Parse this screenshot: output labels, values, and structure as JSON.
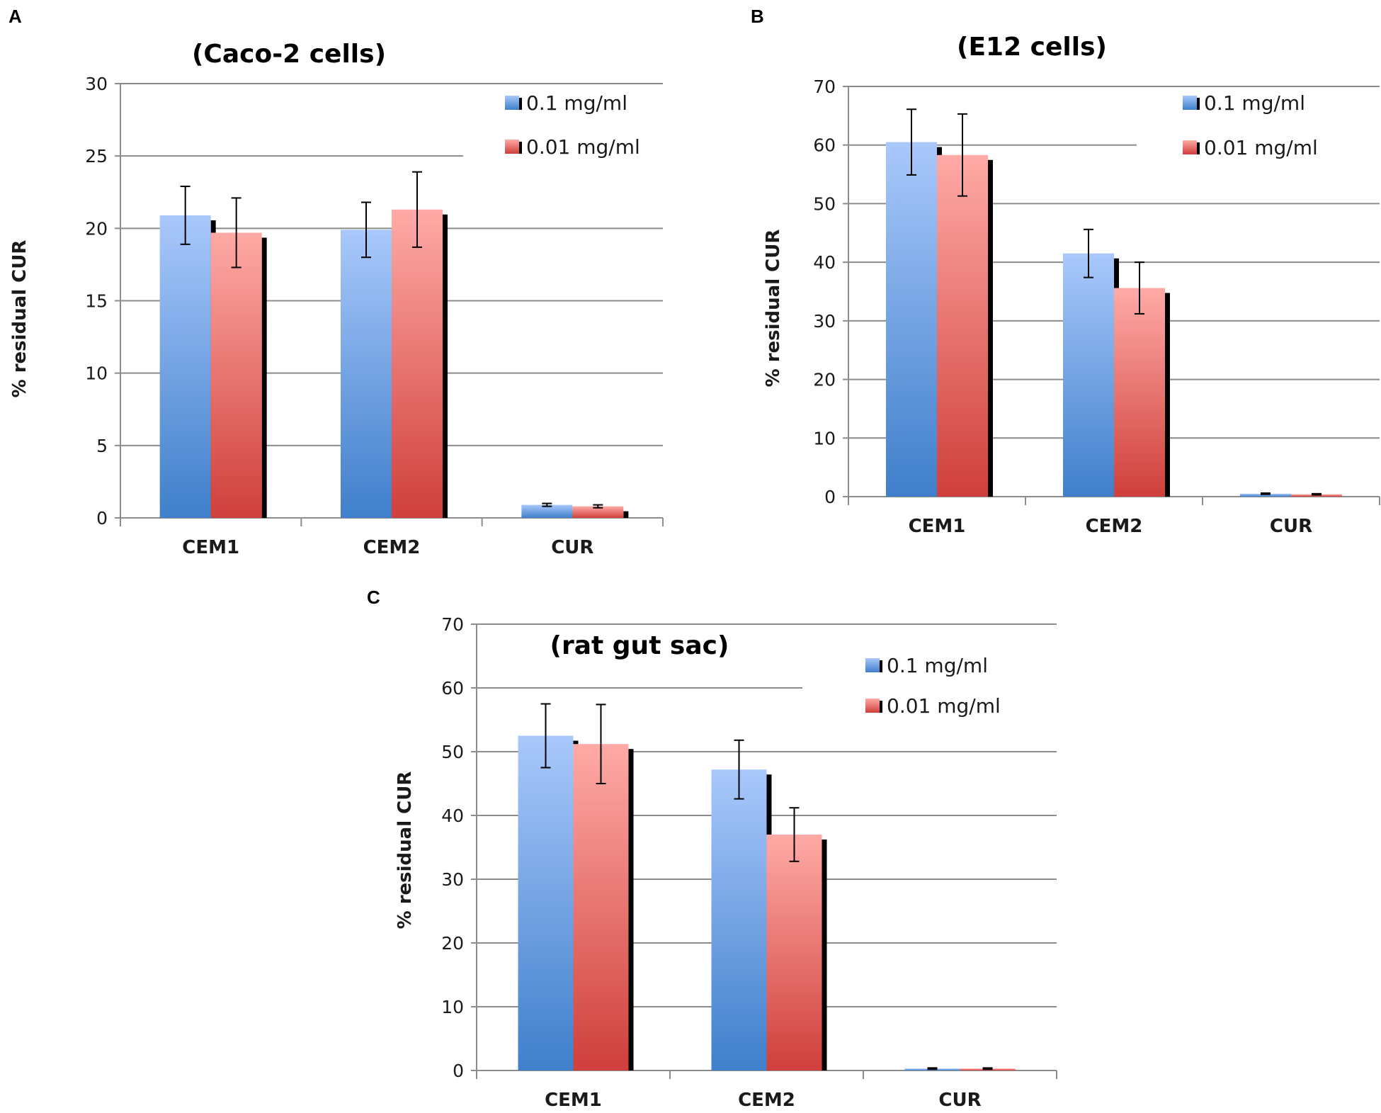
{
  "chart_data": [
    {
      "panel": "A",
      "type": "bar",
      "title": "(Caco-2 cells)",
      "xlabel": "",
      "ylabel": "% residual CUR",
      "ylim": [
        0,
        30
      ],
      "yticks": [
        0,
        5,
        10,
        15,
        20,
        25,
        30
      ],
      "categories": [
        "CEM1",
        "CEM2",
        "CUR"
      ],
      "series": [
        {
          "name": "0.1 mg/ml",
          "values": [
            20.9,
            19.9,
            0.9
          ],
          "errors": [
            2.0,
            1.9,
            0.1
          ]
        },
        {
          "name": "0.01 mg/ml",
          "values": [
            19.7,
            21.3,
            0.8
          ],
          "errors": [
            2.4,
            2.6,
            0.1
          ]
        }
      ],
      "legend": "top-right",
      "grid": true
    },
    {
      "panel": "B",
      "type": "bar",
      "title": "(E12 cells)",
      "xlabel": "",
      "ylabel": "% residual CUR",
      "ylim": [
        0,
        70
      ],
      "yticks": [
        0,
        10,
        20,
        30,
        40,
        50,
        60,
        70
      ],
      "categories": [
        "CEM1",
        "CEM2",
        "CUR"
      ],
      "series": [
        {
          "name": "0.1 mg/ml",
          "values": [
            60.5,
            41.5,
            0.5
          ],
          "errors": [
            5.6,
            4.1,
            0.1
          ]
        },
        {
          "name": "0.01 mg/ml",
          "values": [
            58.3,
            35.6,
            0.4
          ],
          "errors": [
            7.0,
            4.4,
            0.1
          ]
        }
      ],
      "legend": "top-right",
      "grid": true
    },
    {
      "panel": "C",
      "type": "bar",
      "title": "(rat gut sac)",
      "xlabel": "",
      "ylabel": "% residual CUR",
      "ylim": [
        0,
        70
      ],
      "yticks": [
        0,
        10,
        20,
        30,
        40,
        50,
        60,
        70
      ],
      "categories": [
        "CEM1",
        "CEM2",
        "CUR"
      ],
      "series": [
        {
          "name": "0.1 mg/ml",
          "values": [
            52.5,
            47.2,
            0.3
          ],
          "errors": [
            5.0,
            4.6,
            0.1
          ]
        },
        {
          "name": "0.01 mg/ml",
          "values": [
            51.2,
            37.0,
            0.3
          ],
          "errors": [
            6.2,
            4.2,
            0.1
          ]
        }
      ],
      "legend": "top-right",
      "grid": true
    }
  ],
  "colors": {
    "series_0_top": "#a9c8fb",
    "series_0_bottom": "#3f7fcb",
    "series_1_top": "#ffaaa6",
    "series_1_bottom": "#cf3f3b",
    "grid": "#8c8c8c",
    "axis": "#8c8c8c",
    "shadow": "#000000"
  }
}
